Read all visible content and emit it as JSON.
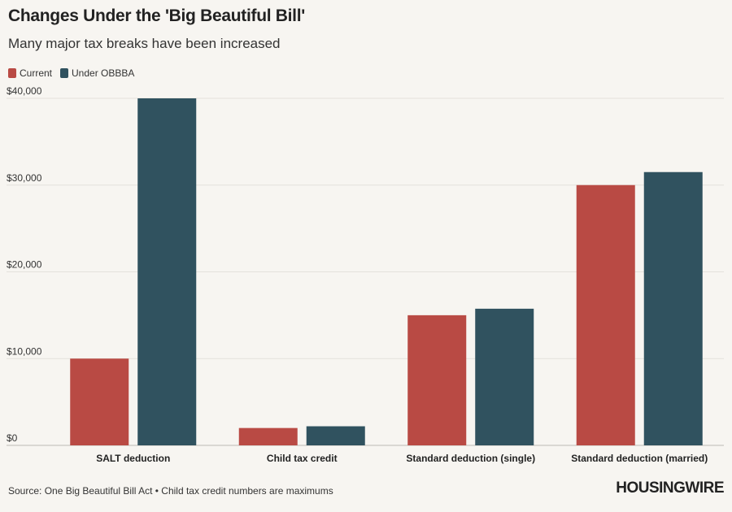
{
  "header": {
    "title": "Changes Under the 'Big Beautiful Bill'",
    "subtitle": "Many major tax breaks have been increased"
  },
  "legend": [
    {
      "label": "Current",
      "color": "#b94a44"
    },
    {
      "label": "Under OBBBA",
      "color": "#30525f"
    }
  ],
  "chart_data": {
    "type": "bar",
    "title": "Changes Under the 'Big Beautiful Bill'",
    "subtitle": "Many major tax breaks have been increased",
    "categories": [
      "SALT deduction",
      "Child tax credit",
      "Standard deduction (single)",
      "Standard deduction (married)"
    ],
    "series": [
      {
        "name": "Current",
        "color": "#b94a44",
        "values": [
          10000,
          2000,
          15000,
          30000
        ]
      },
      {
        "name": "Under OBBBA",
        "color": "#30525f",
        "values": [
          40000,
          2200,
          15750,
          31500
        ]
      }
    ],
    "ylim": [
      0,
      40000
    ],
    "yticks": [
      0,
      10000,
      20000,
      30000,
      40000
    ],
    "ytick_labels": [
      "$0",
      "$10,000",
      "$20,000",
      "$30,000",
      "$40,000"
    ],
    "grid": true,
    "legend_position": "top-left"
  },
  "footer": {
    "source": "Source: One Big Beautiful Bill Act • Child tax credit numbers are maximums",
    "brand": "HOUSINGWIRE"
  }
}
